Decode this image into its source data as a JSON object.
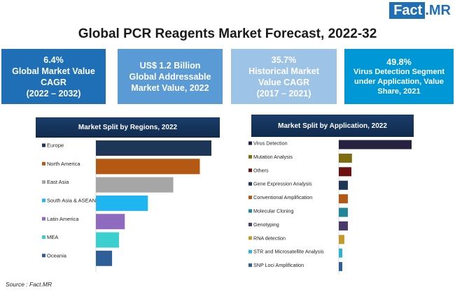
{
  "logo": {
    "fact": "Fact",
    "dot": ".",
    "mr": "MR"
  },
  "title": "Global PCR Reagents Market Forecast, 2022-32",
  "kpis": [
    {
      "value": "6.4%",
      "line1": "Global Market Value",
      "line2": "CAGR",
      "line3": "(2022 – 2032)"
    },
    {
      "value": "US$ 1.2 Billion",
      "line1": "Global Addressable",
      "line2": "Market Value, 2022",
      "line3": ""
    },
    {
      "value": "35.7%",
      "line1": "Historical Market",
      "line2": "Value CAGR",
      "line3": "(2017 – 2021)"
    },
    {
      "value": "49.8%",
      "line1": "Virus Detection Segment",
      "line2": "under Application, Value",
      "line3": "Share, 2021"
    }
  ],
  "source": "Source : Fact.MR",
  "chart_data": [
    {
      "type": "bar",
      "orientation": "horizontal",
      "title": "Market Split by Regions, 2022",
      "categories": [
        "Europe",
        "North America",
        "East Asia",
        "South Asia & ASEAN",
        "Latin America",
        "MEA",
        "Oceania"
      ],
      "values": [
        100,
        90,
        67,
        45,
        25,
        20,
        14
      ],
      "colors": [
        "#1d3557",
        "#b35914",
        "#a6a6a6",
        "#1fb5f0",
        "#8e6bbf",
        "#3ccfcf",
        "#2e5f99"
      ],
      "grid": false,
      "xaxis": "hidden"
    },
    {
      "type": "bar",
      "orientation": "horizontal",
      "title": "Market Split by Application, 2022",
      "categories": [
        "Virus Detection",
        "Mutation Analysis",
        "Others",
        "Gene Expression Analysis",
        "Conventional Amplification",
        "Molecular Cloning",
        "Genotyping",
        "RNA detection",
        "STR and Microsatellite Analysis",
        "SNP Loci Amplification"
      ],
      "values": [
        49.8,
        9,
        8.6,
        6.2,
        6.2,
        6.2,
        6.2,
        3.8,
        2.4,
        2.4
      ],
      "colors": [
        "#26213f",
        "#7e6a0f",
        "#6b1111",
        "#1d3557",
        "#b35914",
        "#1f8799",
        "#4a3a6b",
        "#c29a2a",
        "#2ab5d4",
        "#2e5f99"
      ],
      "grid": false,
      "xaxis": "hidden"
    }
  ]
}
